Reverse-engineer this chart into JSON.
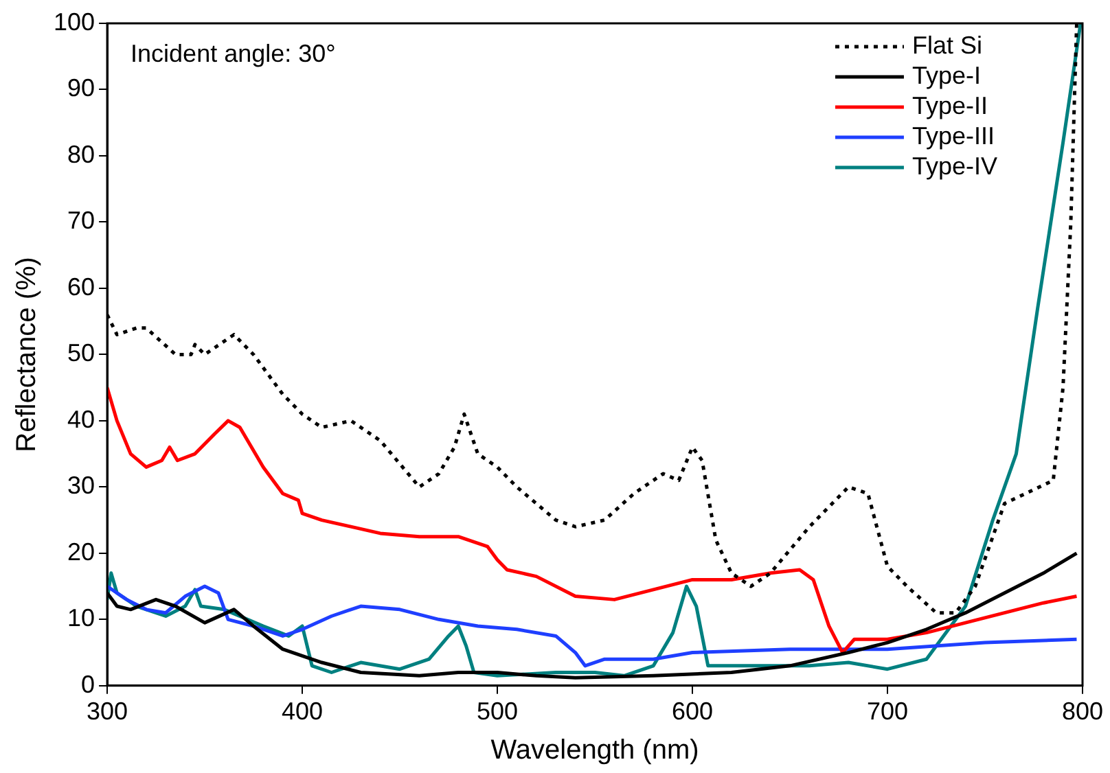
{
  "chart_data": {
    "type": "line",
    "xlabel": "Wavelength (nm)",
    "ylabel": "Reflectance (%)",
    "xlim": [
      300,
      800
    ],
    "xticks": [
      300,
      400,
      500,
      600,
      700,
      800
    ],
    "ylim": [
      0,
      100
    ],
    "yticks": [
      0,
      10,
      20,
      30,
      40,
      50,
      60,
      70,
      80,
      90,
      100
    ],
    "grid": false,
    "legend": "top right",
    "marker": "none",
    "annotations": [
      "Incident angle: 30°"
    ],
    "series": [
      {
        "name": "Flat Si",
        "color": "#000000",
        "line_style": "dotted",
        "x": [
          300,
          305,
          315,
          320,
          335,
          343,
          345,
          350,
          365,
          375,
          390,
          400,
          410,
          425,
          440,
          460,
          470,
          478,
          483,
          490,
          500,
          510,
          530,
          540,
          555,
          570,
          585,
          593,
          600,
          605,
          612,
          620,
          630,
          640,
          660,
          680,
          690,
          700,
          710,
          725,
          735,
          745,
          760,
          785,
          790,
          794,
          797
        ],
        "values": [
          56,
          53,
          54,
          54,
          50,
          50,
          51.5,
          50,
          53,
          50,
          44,
          41,
          39,
          40,
          37,
          30,
          32,
          36,
          41,
          35,
          33,
          30,
          25,
          24,
          25,
          29,
          32,
          31,
          36,
          34,
          22,
          17,
          15,
          17,
          24,
          30,
          29,
          18,
          15,
          11,
          11,
          15,
          27.5,
          31,
          45,
          70,
          100
        ]
      },
      {
        "name": "Type-I",
        "color": "#000000",
        "line_style": "solid",
        "x": [
          300,
          305,
          312,
          325,
          335,
          350,
          365,
          375,
          390,
          410,
          430,
          460,
          480,
          500,
          520,
          540,
          580,
          620,
          650,
          680,
          700,
          720,
          740,
          760,
          780,
          797
        ],
        "values": [
          14,
          12,
          11.5,
          13,
          12,
          9.5,
          11.5,
          9,
          5.5,
          3.5,
          2,
          1.5,
          2,
          2,
          1.5,
          1.2,
          1.5,
          2,
          3,
          5,
          6.5,
          8.5,
          11,
          14,
          17,
          20
        ]
      },
      {
        "name": "Type-II",
        "color": "#ff0000",
        "line_style": "solid",
        "x": [
          300,
          305,
          312,
          320,
          328,
          332,
          336,
          345,
          355,
          362,
          368,
          380,
          390,
          398,
          400,
          410,
          440,
          460,
          480,
          495,
          500,
          505,
          520,
          540,
          560,
          580,
          600,
          620,
          640,
          655,
          662,
          670,
          677,
          683,
          700,
          720,
          740,
          760,
          780,
          797
        ],
        "values": [
          45,
          40,
          35,
          33,
          34,
          36,
          34,
          35,
          38,
          40,
          39,
          33,
          29,
          28,
          26,
          25,
          23,
          22.5,
          22.5,
          21,
          19,
          17.5,
          16.5,
          13.5,
          13,
          14.5,
          16,
          16,
          17,
          17.5,
          16,
          9,
          5,
          7,
          7,
          8,
          9.5,
          11,
          12.5,
          13.5
        ]
      },
      {
        "name": "Type-III",
        "color": "#1f3fff",
        "line_style": "solid",
        "x": [
          300,
          310,
          320,
          330,
          340,
          350,
          357,
          362,
          375,
          390,
          400,
          415,
          430,
          450,
          470,
          490,
          510,
          530,
          540,
          545,
          555,
          580,
          600,
          650,
          700,
          750,
          797
        ],
        "values": [
          15,
          13,
          11.5,
          11,
          13.5,
          15,
          14,
          10,
          9,
          7.5,
          8.5,
          10.5,
          12,
          11.5,
          10,
          9,
          8.5,
          7.5,
          5,
          3,
          4,
          4,
          5,
          5.5,
          5.5,
          6.5,
          7
        ]
      },
      {
        "name": "Type-IV",
        "color": "#008080",
        "line_style": "solid",
        "x": [
          300,
          302,
          305,
          315,
          330,
          340,
          345,
          348,
          360,
          380,
          393,
          400,
          405,
          415,
          430,
          450,
          465,
          475,
          480,
          484,
          488,
          500,
          530,
          550,
          565,
          580,
          590,
          597,
          602,
          608,
          620,
          660,
          680,
          700,
          720,
          740,
          754,
          766,
          777,
          790,
          799
        ],
        "values": [
          13,
          17,
          14,
          12,
          10.5,
          12,
          14.5,
          12,
          11.5,
          9,
          7.5,
          9,
          3,
          2,
          3.5,
          2.5,
          4,
          7.5,
          9,
          6,
          2,
          1.5,
          2,
          2,
          1.5,
          3,
          8,
          15,
          12,
          3,
          3,
          3,
          3.5,
          2.5,
          4,
          12,
          25,
          35,
          57,
          82,
          100
        ]
      }
    ]
  }
}
